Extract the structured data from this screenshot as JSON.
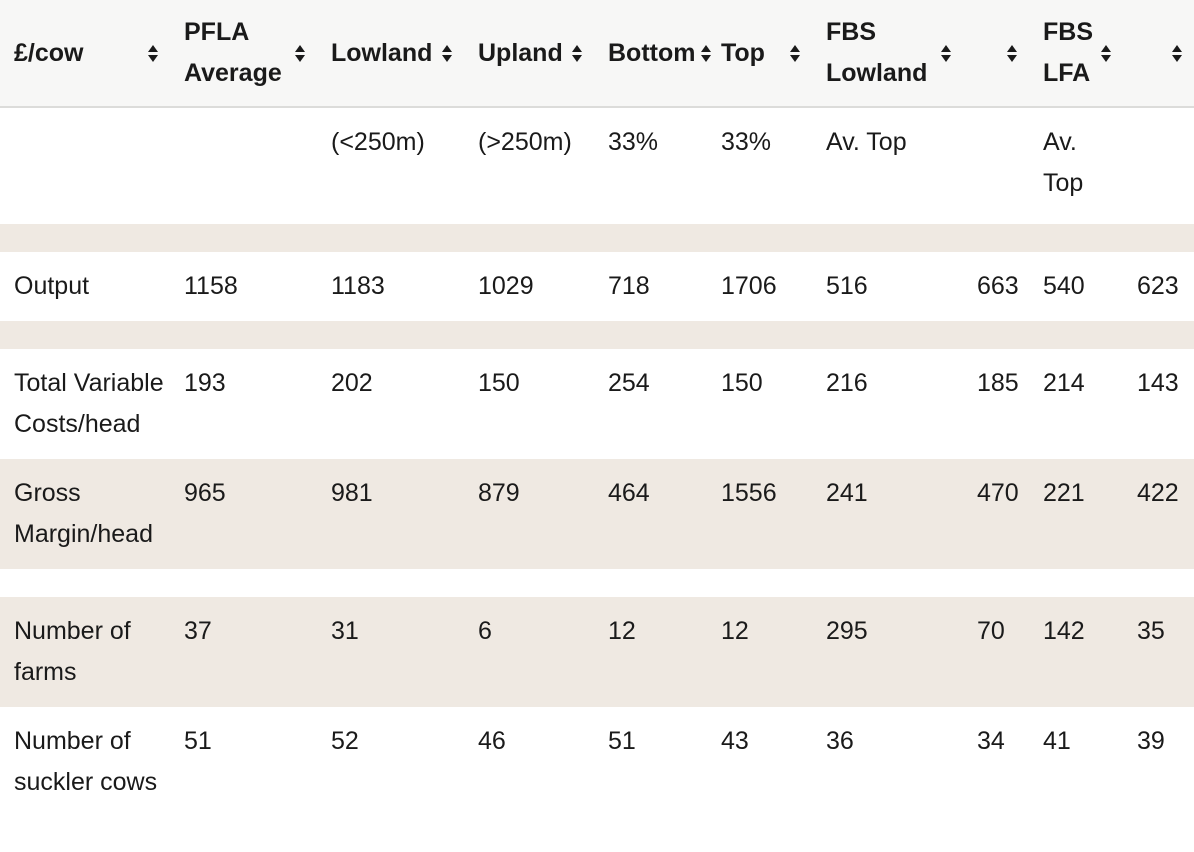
{
  "table": {
    "unit_label": "£/cow",
    "columns": [
      {
        "label": "£/cow",
        "sublabel": ""
      },
      {
        "label": "PFLA Average",
        "sublabel": ""
      },
      {
        "label": "Lowland",
        "sublabel": "(<250m)"
      },
      {
        "label": "Upland",
        "sublabel": "(>250m)"
      },
      {
        "label": "Bottom",
        "sublabel": "33%"
      },
      {
        "label": "Top",
        "sublabel": "33%"
      },
      {
        "label": "FBS Lowland",
        "sublabel": "Av. Top"
      },
      {
        "label": "",
        "sublabel": ""
      },
      {
        "label": "FBS LFA",
        "sublabel": "Av. Top"
      },
      {
        "label": "",
        "sublabel": ""
      }
    ],
    "rows": [
      {
        "kind": "spacer",
        "shaded": true
      },
      {
        "kind": "data",
        "label": "Output",
        "values": [
          "1158",
          "1183",
          "1029",
          "718",
          "1706",
          "516",
          "663",
          "540",
          "623"
        ],
        "shaded": false
      },
      {
        "kind": "spacer",
        "shaded": true
      },
      {
        "kind": "data",
        "label": "Total Variable Costs/head",
        "values": [
          "193",
          "202",
          "150",
          "254",
          "150",
          "216",
          "185",
          "214",
          "143"
        ],
        "shaded": false
      },
      {
        "kind": "data",
        "label": "Gross Margin/head",
        "values": [
          "965",
          "981",
          "879",
          "464",
          "1556",
          "241",
          "470",
          "221",
          "422"
        ],
        "shaded": true
      },
      {
        "kind": "spacer",
        "shaded": false
      },
      {
        "kind": "data",
        "label": "Number of farms",
        "values": [
          "37",
          "31",
          "6",
          "12",
          "12",
          "295",
          "70",
          "142",
          "35"
        ],
        "shaded": true
      },
      {
        "kind": "data",
        "label": "Number of suckler cows",
        "values": [
          "51",
          "52",
          "46",
          "51",
          "43",
          "36",
          "34",
          "41",
          "39"
        ],
        "shaded": false
      }
    ],
    "colors": {
      "header_bg": "#f7f7f6",
      "header_border": "#dcdcda",
      "shaded_row_bg": "#efe9e2",
      "text": "#1a1a1a",
      "sort_icon": "#1a1a1a"
    }
  }
}
